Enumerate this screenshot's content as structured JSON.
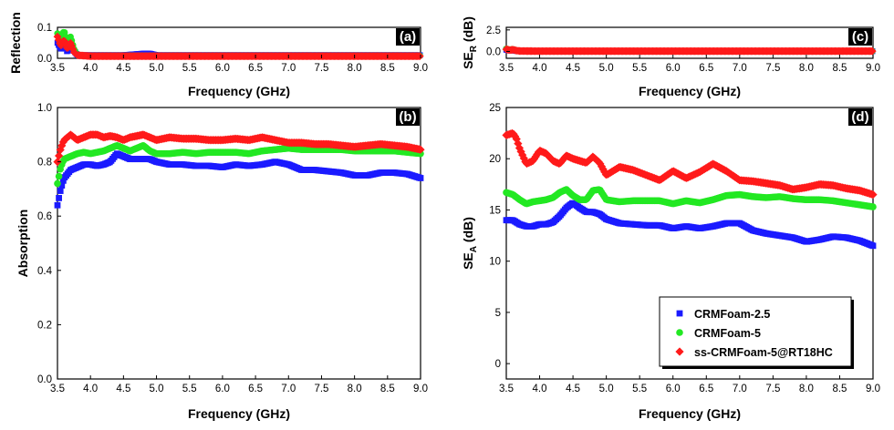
{
  "chart_data": [
    {
      "panel": "(a)",
      "type": "scatter",
      "xlabel": "Frequency (GHz)",
      "ylabel": "Reflection",
      "xlim": [
        3.5,
        9.0
      ],
      "ylim": [
        0.0,
        0.1
      ],
      "xticks": [
        "3.5",
        "4.0",
        "4.5",
        "5.0",
        "5.5",
        "6.0",
        "6.5",
        "7.0",
        "7.5",
        "8.0",
        "8.5",
        "9.0"
      ],
      "yticks": [
        "0.0",
        "0.1"
      ],
      "series": [
        {
          "name": "CRMFoam-2.5",
          "color": "#1a1aff",
          "marker": "square",
          "x": [
            3.5,
            3.55,
            3.6,
            3.65,
            3.7,
            3.75,
            3.8,
            4.0,
            4.5,
            4.8,
            4.9,
            5.0,
            5.5,
            6.0,
            6.5,
            7.0,
            7.5,
            8.0,
            8.5,
            9.0
          ],
          "y": [
            0.05,
            0.03,
            0.045,
            0.02,
            0.04,
            0.025,
            0.01,
            0.01,
            0.01,
            0.015,
            0.015,
            0.01,
            0.01,
            0.01,
            0.01,
            0.01,
            0.01,
            0.01,
            0.01,
            0.01
          ]
        },
        {
          "name": "CRMFoam-5",
          "color": "#22e822",
          "marker": "circle",
          "x": [
            3.5,
            3.55,
            3.6,
            3.65,
            3.7,
            3.75,
            3.8,
            4.0,
            4.5,
            5.0,
            5.5,
            6.0,
            6.5,
            7.0,
            7.5,
            8.0,
            8.5,
            9.0
          ],
          "y": [
            0.08,
            0.06,
            0.09,
            0.05,
            0.07,
            0.03,
            0.01,
            0.008,
            0.008,
            0.008,
            0.008,
            0.008,
            0.008,
            0.008,
            0.008,
            0.008,
            0.008,
            0.008
          ]
        },
        {
          "name": "ss-CRMFoam-5@RT18HC",
          "color": "#ff1a1a",
          "marker": "diamond",
          "x": [
            3.5,
            3.55,
            3.6,
            3.65,
            3.7,
            3.75,
            3.8,
            4.0,
            4.5,
            5.0,
            5.5,
            6.0,
            6.5,
            7.0,
            7.5,
            8.0,
            8.5,
            9.0
          ],
          "y": [
            0.07,
            0.04,
            0.06,
            0.03,
            0.05,
            0.02,
            0.01,
            0.007,
            0.007,
            0.007,
            0.007,
            0.007,
            0.007,
            0.007,
            0.007,
            0.007,
            0.007,
            0.007
          ]
        }
      ]
    },
    {
      "panel": "(b)",
      "type": "scatter",
      "xlabel": "Frequency (GHz)",
      "ylabel": "Absorption",
      "xlim": [
        3.5,
        9.0
      ],
      "ylim": [
        0.0,
        1.0
      ],
      "xticks": [
        "3.5",
        "4.0",
        "4.5",
        "5.0",
        "5.5",
        "6.0",
        "6.5",
        "7.0",
        "7.5",
        "8.0",
        "8.5",
        "9.0"
      ],
      "yticks": [
        "0.0",
        "0.2",
        "0.4",
        "0.6",
        "0.8",
        "1.0"
      ],
      "series": [
        {
          "name": "CRMFoam-2.5",
          "color": "#1a1aff",
          "marker": "square",
          "x": [
            3.5,
            3.55,
            3.6,
            3.7,
            3.8,
            3.9,
            4.0,
            4.1,
            4.2,
            4.3,
            4.4,
            4.5,
            4.6,
            4.7,
            4.8,
            4.9,
            5.0,
            5.2,
            5.4,
            5.6,
            5.8,
            6.0,
            6.2,
            6.4,
            6.6,
            6.8,
            7.0,
            7.2,
            7.4,
            7.6,
            7.8,
            8.0,
            8.2,
            8.4,
            8.6,
            8.8,
            9.0
          ],
          "y": [
            0.64,
            0.7,
            0.74,
            0.77,
            0.78,
            0.79,
            0.79,
            0.785,
            0.79,
            0.8,
            0.83,
            0.82,
            0.81,
            0.81,
            0.81,
            0.81,
            0.8,
            0.79,
            0.79,
            0.785,
            0.785,
            0.78,
            0.79,
            0.785,
            0.79,
            0.8,
            0.79,
            0.77,
            0.77,
            0.765,
            0.76,
            0.75,
            0.75,
            0.76,
            0.76,
            0.755,
            0.74
          ]
        },
        {
          "name": "CRMFoam-5",
          "color": "#22e822",
          "marker": "circle",
          "x": [
            3.5,
            3.55,
            3.6,
            3.7,
            3.8,
            3.9,
            4.0,
            4.1,
            4.2,
            4.3,
            4.4,
            4.5,
            4.6,
            4.7,
            4.8,
            4.9,
            5.0,
            5.2,
            5.4,
            5.6,
            5.8,
            6.0,
            6.2,
            6.4,
            6.6,
            6.8,
            7.0,
            7.2,
            7.4,
            7.6,
            7.8,
            8.0,
            8.2,
            8.4,
            8.6,
            8.8,
            9.0
          ],
          "y": [
            0.72,
            0.78,
            0.81,
            0.82,
            0.83,
            0.835,
            0.83,
            0.835,
            0.84,
            0.85,
            0.86,
            0.85,
            0.84,
            0.85,
            0.86,
            0.84,
            0.83,
            0.83,
            0.835,
            0.83,
            0.835,
            0.835,
            0.835,
            0.83,
            0.84,
            0.845,
            0.85,
            0.845,
            0.845,
            0.845,
            0.845,
            0.84,
            0.84,
            0.84,
            0.84,
            0.835,
            0.83
          ]
        },
        {
          "name": "ss-CRMFoam-5@RT18HC",
          "color": "#ff1a1a",
          "marker": "diamond",
          "x": [
            3.5,
            3.55,
            3.6,
            3.7,
            3.8,
            3.9,
            4.0,
            4.1,
            4.2,
            4.3,
            4.4,
            4.5,
            4.6,
            4.7,
            4.8,
            4.9,
            5.0,
            5.2,
            5.4,
            5.6,
            5.8,
            6.0,
            6.2,
            6.4,
            6.6,
            6.8,
            7.0,
            7.2,
            7.4,
            7.6,
            7.8,
            8.0,
            8.2,
            8.4,
            8.6,
            8.8,
            9.0
          ],
          "y": [
            0.8,
            0.85,
            0.88,
            0.9,
            0.88,
            0.89,
            0.9,
            0.9,
            0.89,
            0.895,
            0.89,
            0.88,
            0.89,
            0.895,
            0.9,
            0.89,
            0.88,
            0.89,
            0.885,
            0.885,
            0.88,
            0.88,
            0.885,
            0.88,
            0.89,
            0.88,
            0.87,
            0.87,
            0.865,
            0.865,
            0.86,
            0.855,
            0.86,
            0.865,
            0.86,
            0.855,
            0.845
          ]
        }
      ]
    },
    {
      "panel": "(c)",
      "type": "scatter",
      "xlabel": "Frequency (GHz)",
      "ylabel": "SE",
      "ylabel_sub": "R",
      "ylabel_suffix": " (dB)",
      "xlim": [
        3.5,
        9.0
      ],
      "ylim": [
        -0.8,
        2.8
      ],
      "xticks": [
        "3.5",
        "4.0",
        "4.5",
        "5.0",
        "5.5",
        "6.0",
        "6.5",
        "7.0",
        "7.5",
        "8.0",
        "8.5",
        "9.0"
      ],
      "yticks": [
        "0.0",
        "2.5"
      ],
      "series": [
        {
          "name": "CRMFoam-2.5",
          "color": "#1a1aff",
          "marker": "square",
          "x": [
            3.5,
            3.55,
            3.6,
            3.65,
            3.7,
            4.0,
            4.5,
            5.0,
            5.5,
            6.0,
            6.5,
            7.0,
            7.5,
            8.0,
            8.5,
            9.0
          ],
          "y": [
            0.2,
            0.1,
            0.15,
            0.05,
            0.05,
            0.03,
            0.03,
            0.03,
            0.03,
            0.03,
            0.03,
            0.03,
            0.03,
            0.03,
            0.03,
            0.03
          ]
        },
        {
          "name": "CRMFoam-5",
          "color": "#22e822",
          "marker": "circle",
          "x": [
            3.5,
            3.55,
            3.6,
            3.65,
            3.7,
            4.0,
            4.5,
            5.0,
            5.5,
            6.0,
            6.5,
            7.0,
            7.5,
            8.0,
            8.5,
            9.0
          ],
          "y": [
            0.3,
            0.2,
            0.25,
            0.1,
            0.05,
            0.03,
            0.03,
            0.03,
            0.03,
            0.03,
            0.03,
            0.03,
            0.03,
            0.03,
            0.03,
            0.03
          ]
        },
        {
          "name": "ss-CRMFoam-5@RT18HC",
          "color": "#ff1a1a",
          "marker": "diamond",
          "x": [
            3.5,
            3.55,
            3.6,
            3.65,
            3.7,
            4.0,
            4.5,
            5.0,
            5.5,
            6.0,
            6.5,
            7.0,
            7.5,
            8.0,
            8.5,
            9.0
          ],
          "y": [
            0.25,
            0.15,
            0.2,
            0.1,
            0.05,
            0.03,
            0.03,
            0.03,
            0.03,
            0.03,
            0.03,
            0.03,
            0.03,
            0.03,
            0.03,
            0.03
          ]
        }
      ]
    },
    {
      "panel": "(d)",
      "type": "scatter",
      "xlabel": "Frequency (GHz)",
      "ylabel": "SE",
      "ylabel_sub": "A",
      "ylabel_suffix": " (dB)",
      "xlim": [
        3.5,
        9.0
      ],
      "ylim": [
        -1.5,
        25.0
      ],
      "xticks": [
        "3.5",
        "4.0",
        "4.5",
        "5.0",
        "5.5",
        "6.0",
        "6.5",
        "7.0",
        "7.5",
        "8.0",
        "8.5",
        "9.0"
      ],
      "yticks": [
        "0",
        "5",
        "10",
        "15",
        "20",
        "25"
      ],
      "legend": {
        "position": "bottom-right",
        "entries": [
          "CRMFoam-2.5",
          "CRMFoam-5",
          "ss-CRMFoam-5@RT18HC"
        ]
      },
      "series": [
        {
          "name": "CRMFoam-2.5",
          "color": "#1a1aff",
          "marker": "square",
          "x": [
            3.5,
            3.6,
            3.7,
            3.8,
            3.9,
            4.0,
            4.1,
            4.2,
            4.3,
            4.4,
            4.5,
            4.6,
            4.7,
            4.8,
            4.9,
            5.0,
            5.2,
            5.4,
            5.6,
            5.8,
            6.0,
            6.2,
            6.4,
            6.6,
            6.8,
            7.0,
            7.2,
            7.4,
            7.6,
            7.8,
            8.0,
            8.2,
            8.4,
            8.6,
            8.8,
            9.0
          ],
          "y": [
            14.0,
            14.0,
            13.6,
            13.4,
            13.4,
            13.6,
            13.6,
            13.8,
            14.4,
            15.2,
            15.7,
            15.2,
            14.8,
            14.8,
            14.6,
            14.1,
            13.7,
            13.6,
            13.5,
            13.5,
            13.2,
            13.4,
            13.2,
            13.4,
            13.7,
            13.7,
            13.0,
            12.7,
            12.5,
            12.3,
            11.9,
            12.1,
            12.4,
            12.3,
            12.0,
            11.5
          ]
        },
        {
          "name": "CRMFoam-5",
          "color": "#22e822",
          "marker": "circle",
          "x": [
            3.5,
            3.6,
            3.7,
            3.8,
            3.9,
            4.0,
            4.1,
            4.2,
            4.3,
            4.4,
            4.5,
            4.6,
            4.7,
            4.8,
            4.9,
            5.0,
            5.2,
            5.4,
            5.6,
            5.8,
            6.0,
            6.2,
            6.4,
            6.6,
            6.8,
            7.0,
            7.2,
            7.4,
            7.6,
            7.8,
            8.0,
            8.2,
            8.4,
            8.6,
            8.8,
            9.0
          ],
          "y": [
            16.7,
            16.5,
            16.0,
            15.6,
            15.8,
            15.9,
            16.0,
            16.2,
            16.7,
            17.0,
            16.4,
            16.0,
            16.0,
            16.9,
            17.0,
            16.0,
            15.8,
            15.9,
            15.9,
            15.9,
            15.6,
            15.9,
            15.7,
            16.0,
            16.4,
            16.5,
            16.3,
            16.2,
            16.3,
            16.1,
            16.0,
            16.0,
            15.9,
            15.7,
            15.5,
            15.3
          ]
        },
        {
          "name": "ss-CRMFoam-5@RT18HC",
          "color": "#ff1a1a",
          "marker": "diamond",
          "x": [
            3.5,
            3.6,
            3.65,
            3.7,
            3.8,
            3.9,
            4.0,
            4.1,
            4.2,
            4.3,
            4.4,
            4.5,
            4.6,
            4.7,
            4.8,
            4.9,
            5.0,
            5.2,
            5.4,
            5.6,
            5.8,
            6.0,
            6.2,
            6.4,
            6.6,
            6.8,
            7.0,
            7.2,
            7.4,
            7.6,
            7.8,
            8.0,
            8.2,
            8.4,
            8.6,
            8.8,
            9.0
          ],
          "y": [
            22.3,
            22.5,
            22.0,
            21.0,
            19.5,
            19.8,
            20.8,
            20.5,
            19.8,
            19.5,
            20.3,
            20.0,
            19.8,
            19.6,
            20.2,
            19.6,
            18.4,
            19.2,
            18.9,
            18.4,
            17.9,
            18.8,
            18.1,
            18.7,
            19.5,
            18.8,
            17.9,
            17.8,
            17.6,
            17.4,
            17.0,
            17.2,
            17.5,
            17.4,
            17.1,
            16.9,
            16.5
          ]
        }
      ]
    }
  ]
}
